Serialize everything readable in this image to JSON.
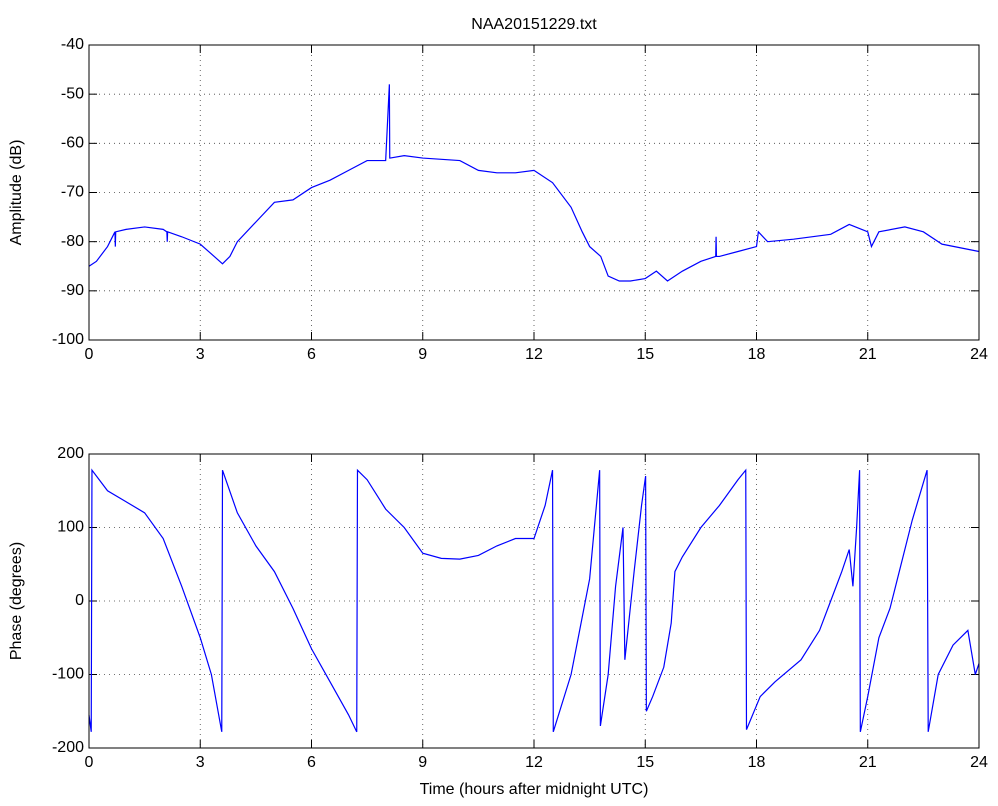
{
  "chart_data": [
    {
      "type": "line",
      "title": "NAA20151229.txt",
      "y_label": "Amplitude (dB)",
      "xlim": [
        0,
        24
      ],
      "ylim": [
        -100,
        -40
      ],
      "xticks": [
        0,
        3,
        6,
        9,
        12,
        15,
        18,
        21,
        24
      ],
      "yticks": [
        -100,
        -90,
        -80,
        -70,
        -60,
        -50,
        -40
      ],
      "grid": true,
      "series": [
        {
          "color": "#0000ff",
          "x": [
            0,
            0.2,
            0.5,
            0.7,
            0.71,
            0.72,
            1,
            1.5,
            2,
            2.1,
            2.11,
            2.12,
            2.5,
            3,
            3.3,
            3.6,
            3.8,
            4,
            4.5,
            5,
            5.5,
            6,
            6.5,
            7,
            7.5,
            8,
            8.1,
            8.11,
            8.12,
            8.5,
            9,
            10,
            10.5,
            11,
            11.5,
            12,
            12.5,
            13,
            13.3,
            13.5,
            13.8,
            14,
            14.3,
            14.6,
            15,
            15.3,
            15.6,
            16,
            16.5,
            16.9,
            16.91,
            16.92,
            17,
            17.5,
            18,
            18.05,
            18.3,
            19,
            20,
            20.5,
            21,
            21.1,
            21.3,
            22,
            22.5,
            23,
            24
          ],
          "values": [
            -85,
            -84,
            -81,
            -78,
            -81,
            -78,
            -77.5,
            -77,
            -77.5,
            -78,
            -80,
            -78,
            -79,
            -80.5,
            -82.5,
            -84.5,
            -83,
            -80,
            -76,
            -72,
            -71.5,
            -69,
            -67.5,
            -65.5,
            -63.5,
            -63.5,
            -48,
            -63,
            -63,
            -62.5,
            -63,
            -63.5,
            -65.5,
            -66,
            -66,
            -65.5,
            -68,
            -73,
            -78,
            -81,
            -83,
            -87,
            -88,
            -88,
            -87.5,
            -86,
            -88,
            -86,
            -84,
            -83,
            -79,
            -83,
            -83,
            -82,
            -81,
            -78,
            -80,
            -79.5,
            -78.5,
            -76.5,
            -78,
            -81,
            -78,
            -77,
            -78,
            -80.5,
            -82
          ]
        }
      ]
    },
    {
      "type": "line",
      "x_label": "Time (hours after midnight UTC)",
      "y_label": "Phase (degrees)",
      "xlim": [
        0,
        24
      ],
      "ylim": [
        -200,
        200
      ],
      "xticks": [
        0,
        3,
        6,
        9,
        12,
        15,
        18,
        21,
        24
      ],
      "yticks": [
        -200,
        -100,
        0,
        100,
        200
      ],
      "grid": true,
      "series": [
        {
          "color": "#0000ff",
          "x": [
            0,
            0.06,
            0.08,
            0.5,
            1,
            1.5,
            2,
            2.5,
            3,
            3.3,
            3.58,
            3.6,
            4,
            4.5,
            5,
            5.5,
            6,
            6.5,
            7,
            7.22,
            7.24,
            7.5,
            8,
            8.5,
            9,
            9.5,
            10,
            10.5,
            11,
            11.5,
            12,
            12.3,
            12.5,
            12.52,
            13,
            13.5,
            13.77,
            13.79,
            14,
            14.2,
            14.4,
            14.45,
            14.7,
            14.9,
            15.01,
            15.03,
            15.2,
            15.5,
            15.7,
            15.8,
            16,
            16.5,
            17,
            17.5,
            17.71,
            17.73,
            18.1,
            18.5,
            19.2,
            19.7,
            20,
            20.3,
            20.5,
            20.6,
            20.7,
            20.78,
            20.8,
            21,
            21.3,
            21.6,
            21.8,
            22.2,
            22.6,
            22.63,
            22.9,
            23.3,
            23.7,
            23.9,
            24
          ],
          "values": [
            -155,
            -178,
            178,
            150,
            135,
            120,
            85,
            20,
            -50,
            -100,
            -178,
            178,
            120,
            75,
            40,
            -10,
            -65,
            -110,
            -155,
            -178,
            178,
            165,
            125,
            100,
            65,
            58,
            57,
            62,
            75,
            85,
            85,
            130,
            178,
            -178,
            -100,
            30,
            178,
            -170,
            -100,
            20,
            100,
            -80,
            40,
            130,
            170,
            -150,
            -130,
            -90,
            -30,
            40,
            60,
            100,
            130,
            165,
            178,
            -175,
            -130,
            -110,
            -80,
            -40,
            0,
            40,
            70,
            20,
            100,
            178,
            -178,
            -130,
            -50,
            -10,
            30,
            110,
            178,
            -178,
            -100,
            -60,
            -40,
            -100,
            -85
          ]
        }
      ]
    }
  ]
}
